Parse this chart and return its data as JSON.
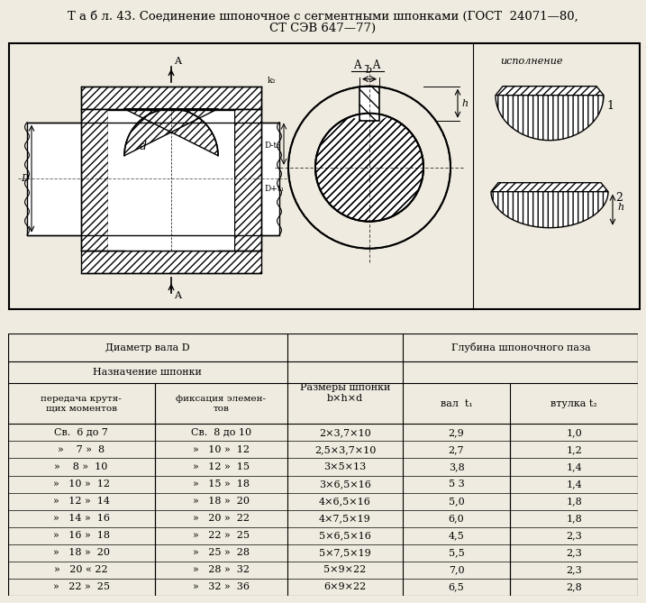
{
  "title_line1": "Т а б л. 43. Соединение шпоночное с сегментными шпонками (ГОСТ  24071—80,",
  "title_line2": "СТ СЭВ 647—77)",
  "bg_color": "#f0ebe0",
  "data_rows": [
    [
      "Св.  6 до 7",
      "Св.  8 до 10",
      "2×3,7×10",
      "2,9",
      "1,0"
    ],
    [
      "»    7 »  8",
      "»   10 »  12",
      "2,5×3,7×10",
      "2,7",
      "1,2"
    ],
    [
      "»    8 »  10",
      "»   12 »  15",
      "3×5×13",
      "3,8",
      "1,4"
    ],
    [
      "»   10 »  12",
      "»   15 »  18",
      "3×6,5×16",
      "5 3",
      "1,4"
    ],
    [
      "»   12 »  14",
      "»   18 »  20",
      "4×6,5×16",
      "5,0",
      "1,8"
    ],
    [
      "»   14 »  16",
      "»   20 »  22",
      "4×7,5×19",
      "6,0",
      "1,8"
    ],
    [
      "»   16 »  18",
      "»   22 »  25",
      "5×6,5×16",
      "4,5",
      "2,3"
    ],
    [
      "»   18 »  20",
      "»   25 »  28",
      "5×7,5×19",
      "5,5",
      "2,3"
    ],
    [
      "»   20 « 22",
      "»   28 »  32",
      "5×9×22",
      "7,0",
      "2,3"
    ],
    [
      "»   22 »  25",
      "»   32 »  36",
      "6×9×22",
      "6,5",
      "2,8"
    ]
  ],
  "font_size_title": 9.5,
  "font_size_table": 8,
  "font_size_header": 8
}
